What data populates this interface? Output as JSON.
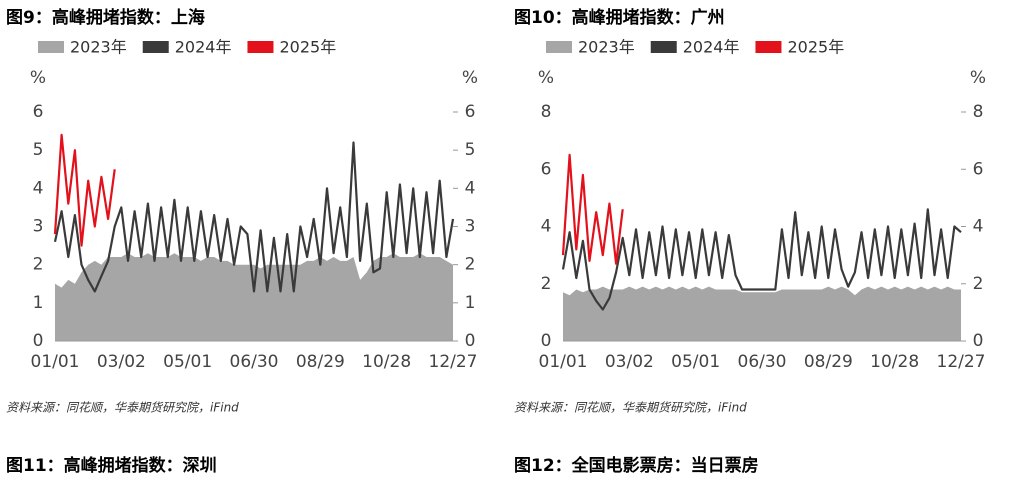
{
  "chart_data": [
    {
      "type": "line",
      "title": "图9：高峰拥堵指数：上海",
      "y_label": "%",
      "categories": [
        "01/01",
        null,
        null,
        null,
        null,
        null,
        null,
        null,
        null,
        null,
        "03/02",
        null,
        null,
        null,
        null,
        null,
        null,
        null,
        null,
        null,
        "05/01",
        null,
        null,
        null,
        null,
        null,
        null,
        null,
        null,
        null,
        "06/30",
        null,
        null,
        null,
        null,
        null,
        null,
        null,
        null,
        null,
        "08/29",
        null,
        null,
        null,
        null,
        null,
        null,
        null,
        null,
        null,
        "10/28",
        null,
        null,
        null,
        null,
        null,
        null,
        null,
        null,
        null,
        "12/27"
      ],
      "ylim": [
        0,
        6
      ],
      "yticks": [
        0,
        1,
        2,
        3,
        4,
        5,
        6
      ],
      "series": [
        {
          "name": "2023年",
          "color": "#a6a6a6",
          "values": [
            1.5,
            1.4,
            1.6,
            1.5,
            1.8,
            2.0,
            2.1,
            2.0,
            2.2,
            2.2,
            2.2,
            2.3,
            2.2,
            2.2,
            2.3,
            2.2,
            2.2,
            2.2,
            2.3,
            2.2,
            2.2,
            2.2,
            2.1,
            2.2,
            2.2,
            2.1,
            2.1,
            2.0,
            2.0,
            2.0,
            2.0,
            1.9,
            2.0,
            2.0,
            2.0,
            2.0,
            2.0,
            2.0,
            2.1,
            2.1,
            2.2,
            2.1,
            2.2,
            2.1,
            2.1,
            2.2,
            1.6,
            1.8,
            2.1,
            2.2,
            2.2,
            2.3,
            2.2,
            2.2,
            2.2,
            2.3,
            2.2,
            2.2,
            2.2,
            2.1,
            2.0
          ]
        },
        {
          "name": "2024年",
          "color": "#3a3a3a",
          "values": [
            2.6,
            3.4,
            2.2,
            3.3,
            2.0,
            1.6,
            1.3,
            1.7,
            2.1,
            3.0,
            3.5,
            2.1,
            3.4,
            2.2,
            3.6,
            2.1,
            3.5,
            2.2,
            3.7,
            2.1,
            3.5,
            2.1,
            3.4,
            2.2,
            3.3,
            2.1,
            3.2,
            2.0,
            3.0,
            2.8,
            1.3,
            2.9,
            1.3,
            2.7,
            1.3,
            2.8,
            1.3,
            3.0,
            2.2,
            3.2,
            2.0,
            4.0,
            2.3,
            3.5,
            2.2,
            5.2,
            2.1,
            3.6,
            1.8,
            1.9,
            3.9,
            2.2,
            4.1,
            2.3,
            4.0,
            2.2,
            3.9,
            2.3,
            4.2,
            2.2,
            3.2
          ]
        },
        {
          "name": "2025年",
          "color": "#e3111b",
          "values": [
            2.8,
            5.4,
            3.6,
            5.0,
            2.5,
            4.2,
            3.0,
            4.3,
            3.2,
            4.5,
            null,
            null,
            null,
            null,
            null,
            null,
            null,
            null,
            null,
            null,
            null,
            null,
            null,
            null,
            null,
            null,
            null,
            null,
            null,
            null,
            null,
            null,
            null,
            null,
            null,
            null,
            null,
            null,
            null,
            null,
            null,
            null,
            null,
            null,
            null,
            null,
            null,
            null,
            null,
            null,
            null,
            null,
            null,
            null,
            null,
            null,
            null,
            null,
            null,
            null,
            null
          ]
        }
      ]
    },
    {
      "type": "line",
      "title": "图10：高峰拥堵指数：广州",
      "y_label": "%",
      "categories": [
        "01/01",
        null,
        null,
        null,
        null,
        null,
        null,
        null,
        null,
        null,
        "03/02",
        null,
        null,
        null,
        null,
        null,
        null,
        null,
        null,
        null,
        "05/01",
        null,
        null,
        null,
        null,
        null,
        null,
        null,
        null,
        null,
        "06/30",
        null,
        null,
        null,
        null,
        null,
        null,
        null,
        null,
        null,
        "08/29",
        null,
        null,
        null,
        null,
        null,
        null,
        null,
        null,
        null,
        "10/28",
        null,
        null,
        null,
        null,
        null,
        null,
        null,
        null,
        null,
        "12/27"
      ],
      "ylim": [
        0,
        8
      ],
      "yticks": [
        0,
        2,
        4,
        6,
        8
      ],
      "series": [
        {
          "name": "2023年",
          "color": "#a6a6a6",
          "values": [
            1.7,
            1.6,
            1.8,
            1.7,
            1.8,
            1.8,
            1.9,
            1.8,
            1.8,
            1.8,
            1.9,
            1.8,
            1.9,
            1.8,
            1.9,
            1.8,
            1.9,
            1.8,
            1.9,
            1.8,
            1.9,
            1.8,
            1.9,
            1.8,
            1.8,
            1.8,
            1.8,
            1.7,
            1.7,
            1.7,
            1.7,
            1.7,
            1.7,
            1.8,
            1.8,
            1.8,
            1.8,
            1.8,
            1.8,
            1.8,
            1.9,
            1.8,
            1.9,
            1.8,
            1.6,
            1.8,
            1.9,
            1.8,
            1.9,
            1.8,
            1.9,
            1.8,
            1.9,
            1.8,
            1.9,
            1.8,
            1.9,
            1.8,
            1.9,
            1.8,
            1.8
          ]
        },
        {
          "name": "2024年",
          "color": "#3a3a3a",
          "values": [
            2.5,
            3.8,
            2.2,
            3.5,
            1.8,
            1.4,
            1.1,
            1.5,
            2.4,
            3.6,
            2.3,
            3.9,
            2.2,
            3.8,
            2.3,
            4.0,
            2.2,
            3.9,
            2.3,
            3.8,
            2.2,
            3.9,
            2.3,
            3.8,
            2.2,
            3.7,
            2.3,
            1.8,
            1.8,
            1.8,
            1.8,
            1.8,
            1.8,
            3.9,
            2.2,
            4.5,
            2.3,
            3.8,
            2.2,
            4.0,
            2.2,
            3.9,
            2.5,
            1.9,
            2.4,
            3.8,
            2.2,
            3.9,
            2.3,
            4.0,
            2.2,
            3.9,
            2.3,
            4.1,
            2.2,
            4.6,
            2.3,
            3.9,
            2.2,
            4.0,
            3.8
          ]
        },
        {
          "name": "2025年",
          "color": "#e3111b",
          "values": [
            3.0,
            6.5,
            3.2,
            5.8,
            2.8,
            4.5,
            3.0,
            4.8,
            2.7,
            4.6,
            null,
            null,
            null,
            null,
            null,
            null,
            null,
            null,
            null,
            null,
            null,
            null,
            null,
            null,
            null,
            null,
            null,
            null,
            null,
            null,
            null,
            null,
            null,
            null,
            null,
            null,
            null,
            null,
            null,
            null,
            null,
            null,
            null,
            null,
            null,
            null,
            null,
            null,
            null,
            null,
            null,
            null,
            null,
            null,
            null,
            null,
            null,
            null,
            null,
            null,
            null
          ]
        }
      ]
    }
  ],
  "sources": [
    "资料来源：同花顺，华泰期货研究院，iFind",
    "资料来源：同花顺，华泰期货研究院，iFind"
  ],
  "next_titles": [
    "图11：高峰拥堵指数：深圳",
    "图12：全国电影票房：当日票房"
  ]
}
